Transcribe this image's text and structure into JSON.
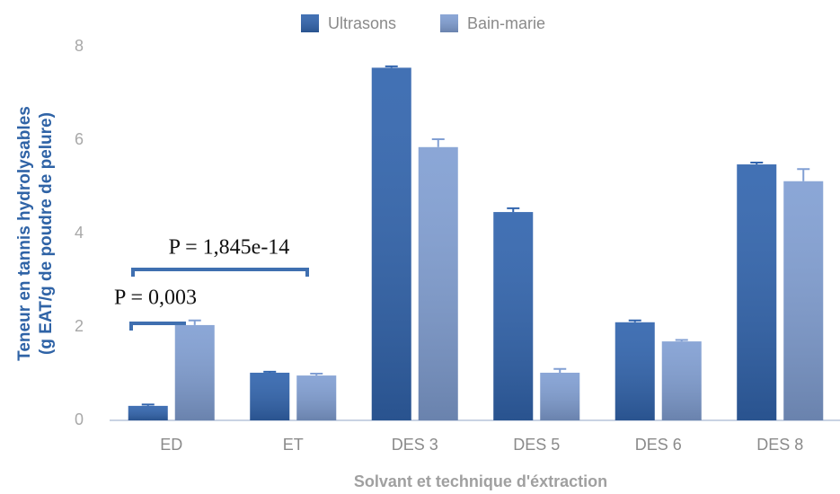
{
  "chart_data": {
    "type": "bar",
    "y_label_lines": [
      "Teneur en tannis hydrolysables",
      "(g EAT/g de poudre de pelure)"
    ],
    "x_label": "Solvant et technique  d'éxtraction",
    "categories": [
      "ED",
      "ET",
      "DES 3",
      "DES 5",
      "DES 6",
      "DES 8"
    ],
    "series": [
      {
        "name": "Ultrasons",
        "color": "#3265ae",
        "values": [
          0.31,
          1.02,
          7.55,
          4.46,
          2.1,
          5.48
        ],
        "errors": [
          0.03,
          0.02,
          0.03,
          0.08,
          0.04,
          0.04
        ]
      },
      {
        "name": "Bain-marie",
        "color": "#819fd3",
        "values": [
          2.04,
          0.96,
          5.85,
          1.02,
          1.69,
          5.12
        ],
        "errors": [
          0.1,
          0.04,
          0.17,
          0.08,
          0.03,
          0.26
        ]
      }
    ],
    "annotations": [
      "P = 1,845e-14",
      "P = 0,003"
    ],
    "ylim": [
      0,
      8
    ],
    "yticks": [
      0,
      2,
      4,
      6,
      8
    ],
    "grid": false,
    "legend": "top"
  }
}
